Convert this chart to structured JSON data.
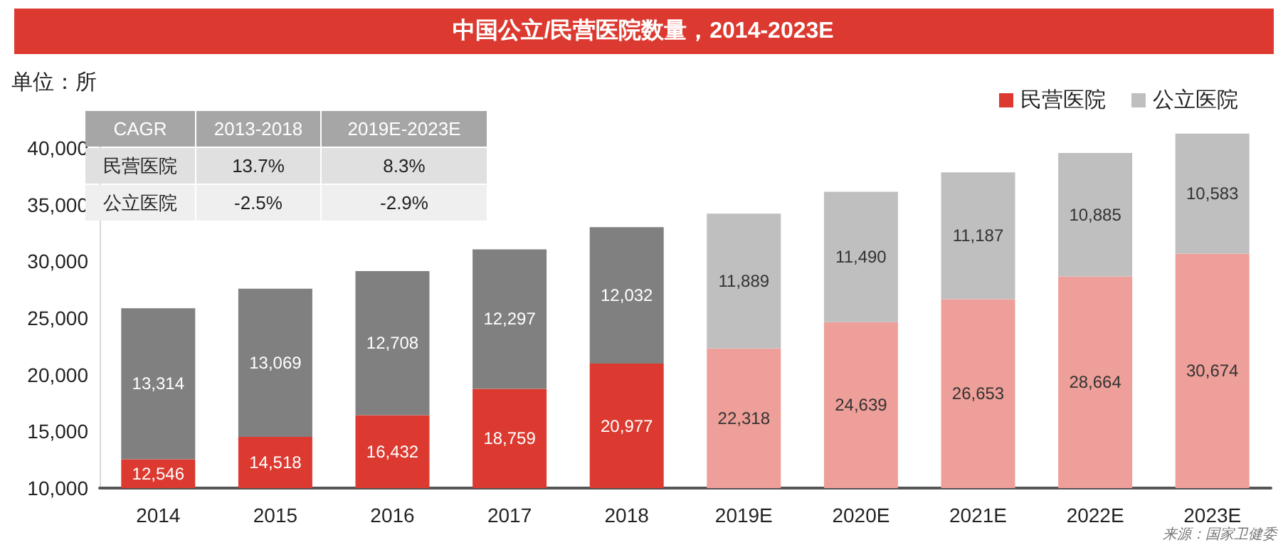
{
  "chart_data": {
    "type": "bar",
    "title": "中国公立/民营医院数量，2014-2023E",
    "ylabel": "单位：所",
    "categories": [
      "2014",
      "2015",
      "2016",
      "2017",
      "2018",
      "2019E",
      "2020E",
      "2021E",
      "2022E",
      "2023E"
    ],
    "stacked": true,
    "legend": "top right",
    "ylim": [
      10000,
      42000
    ],
    "yticks": [
      {
        "value": 10000,
        "label": "10,000"
      },
      {
        "value": 15000,
        "label": "15,000"
      },
      {
        "value": 20000,
        "label": "20,000"
      },
      {
        "value": 25000,
        "label": "25,000"
      },
      {
        "value": 30000,
        "label": "30,000"
      },
      {
        "value": 35000,
        "label": "35,000"
      },
      {
        "value": 40000,
        "label": "40,000"
      }
    ],
    "series": [
      {
        "name": "民营医院",
        "color": "#dc3a30",
        "colors": [
          "#dc3a30",
          "#dc3a30",
          "#dc3a30",
          "#dc3a30",
          "#dc3a30",
          "#ee9f99",
          "#ee9f99",
          "#ee9f99",
          "#ee9f99",
          "#ee9f99"
        ],
        "values": [
          12546,
          14518,
          16432,
          18759,
          20977,
          22318,
          24639,
          26653,
          28664,
          30674
        ],
        "value_labels": [
          "12,546",
          "14,518",
          "16,432",
          "18,759",
          "20,977",
          "22,318",
          "24,639",
          "26,653",
          "28,664",
          "30,674"
        ]
      },
      {
        "name": "公立医院",
        "color": "#bfbfbf",
        "colors": [
          "#808080",
          "#808080",
          "#808080",
          "#808080",
          "#808080",
          "#bfbfbf",
          "#bfbfbf",
          "#bfbfbf",
          "#bfbfbf",
          "#bfbfbf"
        ],
        "values": [
          13314,
          13069,
          12708,
          12297,
          12032,
          11889,
          11490,
          11187,
          10885,
          10583
        ],
        "value_labels": [
          "13,314",
          "13,069",
          "12,708",
          "12,297",
          "12,032",
          "11,889",
          "11,490",
          "11,187",
          "10,885",
          "10,583"
        ]
      }
    ],
    "annotations": [
      "CAGR",
      "2013-2018",
      "2019E-2023E",
      "民营医院",
      "13.7%",
      "8.3%",
      "公立医院",
      "-2.5%",
      "-2.9%",
      "来源：国家卫健委"
    ]
  }
}
